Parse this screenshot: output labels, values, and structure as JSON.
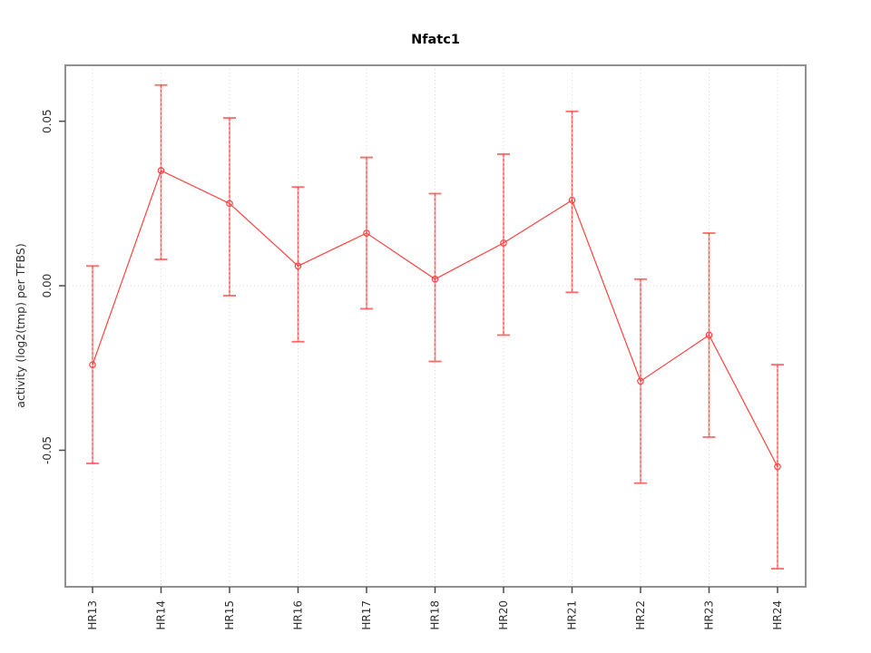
{
  "title": "Nfatc1",
  "axes": {
    "ylabel": "activity (log2(tmp) per TFBS)",
    "xlabel": ""
  },
  "style": {
    "series_color": "#ff4040",
    "errorbar_fill_color": "rgba(255,80,80,0.45)",
    "errorbar_core_color": "#ff4545",
    "frame_color": "#909090",
    "tick_mark_color": "#4a4a4a",
    "grid_color": "#d9d9d9",
    "background": "#ffffff"
  },
  "chart_data": {
    "type": "line",
    "title": "Nfatc1",
    "xlabel": "",
    "ylabel": "activity (log2(tmp) per TFBS)",
    "categories": [
      "HR13",
      "HR14",
      "HR15",
      "HR16",
      "HR17",
      "HR18",
      "HR20",
      "HR21",
      "HR22",
      "HR23",
      "HR24"
    ],
    "series": [
      {
        "name": "activity",
        "values": [
          -0.024,
          0.035,
          0.025,
          0.006,
          0.016,
          0.002,
          0.013,
          0.026,
          -0.029,
          -0.015,
          -0.055
        ],
        "error_low": [
          -0.054,
          0.008,
          -0.003,
          -0.017,
          -0.007,
          -0.023,
          -0.015,
          -0.002,
          -0.06,
          -0.046,
          -0.086
        ],
        "error_high": [
          0.006,
          0.061,
          0.051,
          0.03,
          0.039,
          0.028,
          0.04,
          0.053,
          0.002,
          0.016,
          -0.024
        ]
      }
    ],
    "ylim": [
      -0.0915,
      0.067
    ],
    "yticks": [
      -0.05,
      0.0,
      0.05
    ],
    "ytick_labels": [
      "-0.05",
      "0.00",
      "0.05"
    ],
    "grid": "vertical dotted line at each category; horizontal dotted line at y=0",
    "legend_position": "none",
    "marker": "open-circle",
    "error_bars": true
  }
}
